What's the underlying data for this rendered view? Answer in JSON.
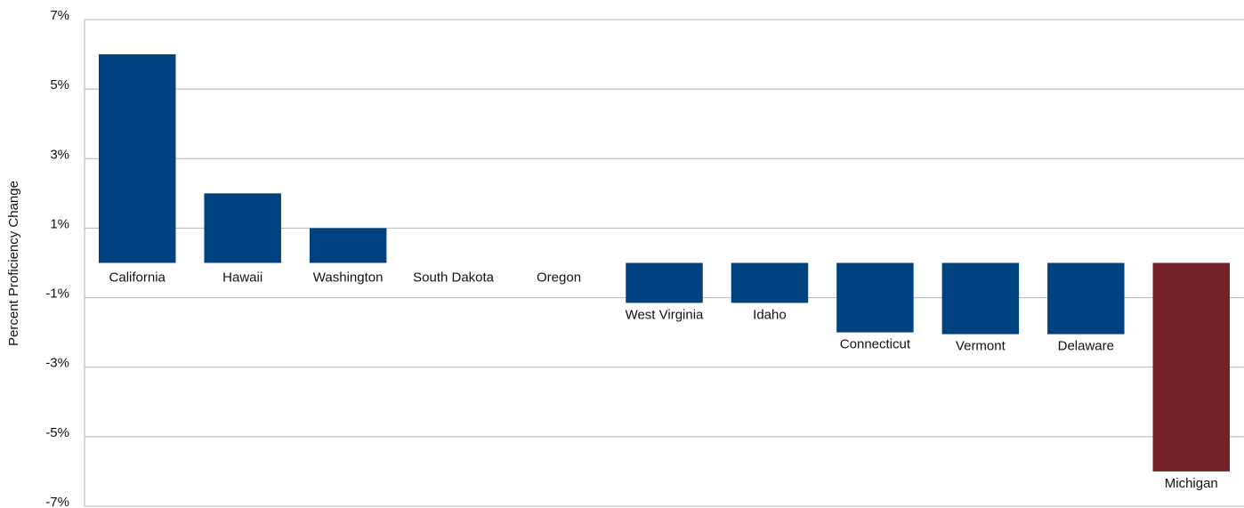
{
  "chart_data": {
    "type": "bar",
    "y_axis_label": "Percent Proficiency Change",
    "categories": [
      "California",
      "Hawaii",
      "Washington",
      "South Dakota",
      "Oregon",
      "West Virginia",
      "Idaho",
      "Connecticut",
      "Vermont",
      "Delaware",
      "Michigan"
    ],
    "values": [
      6,
      2,
      1,
      0,
      0,
      -1.15,
      -1.15,
      -2,
      -2.05,
      -2.05,
      -6
    ],
    "colors": [
      "#00427f",
      "#00427f",
      "#00427f",
      "#00427f",
      "#00427f",
      "#00427f",
      "#00427f",
      "#00427f",
      "#00427f",
      "#00427f",
      "#722227"
    ],
    "ylim": [
      -7,
      7
    ],
    "yticks": [
      {
        "value": -7,
        "label": "-7%"
      },
      {
        "value": -5,
        "label": "-5%"
      },
      {
        "value": -3,
        "label": "-3%"
      },
      {
        "value": -1,
        "label": "-1%"
      },
      {
        "value": 1,
        "label": "1%"
      },
      {
        "value": 3,
        "label": "3%"
      },
      {
        "value": 5,
        "label": "5%"
      },
      {
        "value": 7,
        "label": "7%"
      }
    ],
    "grid": true
  }
}
